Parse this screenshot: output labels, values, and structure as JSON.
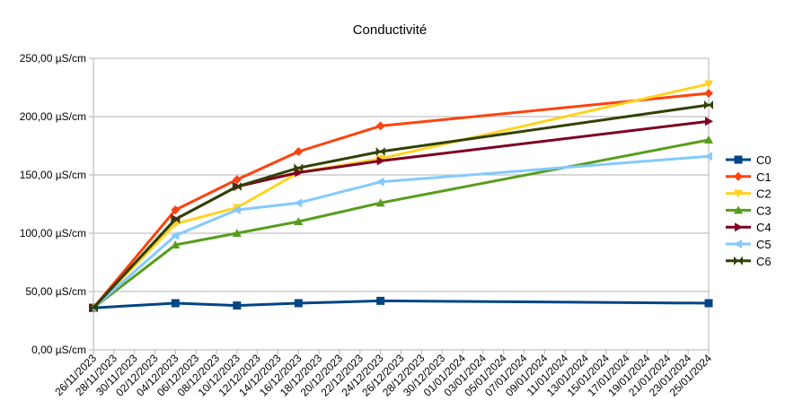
{
  "chart_data": {
    "type": "line",
    "title": "Conductivité",
    "xlabel": "",
    "ylabel": "",
    "y_unit": "µS/cm",
    "ylim": [
      0,
      250
    ],
    "y_ticks": [
      0,
      50,
      100,
      150,
      200,
      250
    ],
    "y_tick_labels": [
      "0,00 µS/cm",
      "50,00 µS/cm",
      "100,00 µS/cm",
      "150,00 µS/cm",
      "200,00 µS/cm",
      "250,00 µS/cm"
    ],
    "x_range": [
      "2023-11-26",
      "2024-01-25"
    ],
    "x_tick_labels": [
      "26/11/2023",
      "28/11/2023",
      "30/11/2023",
      "02/12/2023",
      "04/12/2023",
      "06/12/2023",
      "08/12/2023",
      "10/12/2023",
      "12/12/2023",
      "14/12/2023",
      "16/12/2023",
      "18/12/2023",
      "20/12/2023",
      "22/12/2023",
      "24/12/2023",
      "26/12/2023",
      "28/12/2023",
      "30/12/2023",
      "01/01/2024",
      "03/01/2024",
      "05/01/2024",
      "07/01/2024",
      "09/01/2024",
      "11/01/2024",
      "13/01/2024",
      "15/01/2024",
      "17/01/2024",
      "19/01/2024",
      "21/01/2024",
      "23/01/2024",
      "25/01/2024"
    ],
    "x": [
      "2023-11-26",
      "2023-12-04",
      "2023-12-10",
      "2023-12-16",
      "2023-12-24",
      "2024-01-25"
    ],
    "grid": "horizontal",
    "legend": "right",
    "series": [
      {
        "name": "C0",
        "color": "#004586",
        "marker": "square",
        "values": [
          36,
          40,
          38,
          40,
          42,
          40
        ]
      },
      {
        "name": "C1",
        "color": "#ff420e",
        "marker": "diamond",
        "values": [
          36,
          120,
          146,
          170,
          192,
          220
        ]
      },
      {
        "name": "C2",
        "color": "#ffd320",
        "marker": "triangle-down",
        "values": [
          36,
          108,
          122,
          152,
          164,
          228
        ]
      },
      {
        "name": "C3",
        "color": "#579d1c",
        "marker": "triangle-up",
        "values": [
          36,
          90,
          100,
          110,
          126,
          180
        ]
      },
      {
        "name": "C4",
        "color": "#7e0021",
        "marker": "triangle-right",
        "values": [
          36,
          112,
          140,
          152,
          162,
          196
        ]
      },
      {
        "name": "C5",
        "color": "#83caff",
        "marker": "triangle-left",
        "values": [
          36,
          98,
          120,
          126,
          144,
          166
        ]
      },
      {
        "name": "C6",
        "color": "#314004",
        "marker": "bowtie",
        "values": [
          36,
          112,
          140,
          156,
          170,
          210
        ]
      }
    ]
  }
}
